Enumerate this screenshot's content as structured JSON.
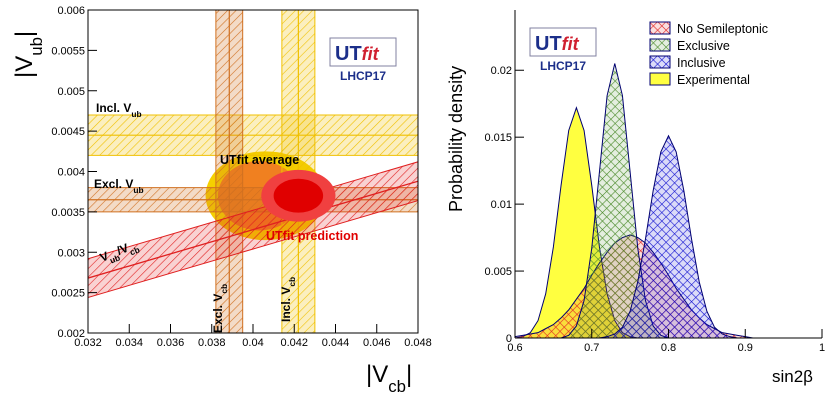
{
  "chart_data": [
    {
      "type": "bands",
      "y_label": [
        "|V",
        "ub",
        "|"
      ],
      "x_label": [
        "|V",
        "cb",
        "|"
      ],
      "xlim": [
        0.032,
        0.048
      ],
      "xticks": [
        0.032,
        0.034,
        0.036,
        0.038,
        0.04,
        0.042,
        0.044,
        0.046,
        0.048
      ],
      "ylim": [
        0.002,
        0.006
      ],
      "yticks": [
        0.002,
        0.0025,
        0.003,
        0.0035,
        0.004,
        0.0045,
        0.005,
        0.0055,
        0.006
      ],
      "logo": {
        "main": "UT",
        "italic": "fit",
        "sub": "LHCP17"
      },
      "bands": [
        {
          "label": [
            "Incl. V",
            "ub"
          ],
          "axis": "y",
          "range": [
            0.0042,
            0.0047
          ],
          "center": 0.00445,
          "color": "#f0c000"
        },
        {
          "label": [
            "Excl. V",
            "ub"
          ],
          "axis": "y",
          "range": [
            0.0035,
            0.0038
          ],
          "center": 0.00365,
          "color": "#d07020"
        },
        {
          "label": [
            "Excl. V",
            "cb"
          ],
          "axis": "x",
          "range": [
            0.0382,
            0.0395
          ],
          "center": 0.03885,
          "color": "#d07020"
        },
        {
          "label": [
            "Incl. V",
            "cb"
          ],
          "axis": "x",
          "range": [
            0.0414,
            0.043
          ],
          "center": 0.0422,
          "color": "#f0c000"
        },
        {
          "label": [
            "V",
            "ub",
            "/V",
            "cb"
          ],
          "axis": "diagonal",
          "x": [
            0.032,
            0.048
          ],
          "center": [
            0.00268,
            0.00388
          ],
          "half_width": 0.00024,
          "color": "#e02020"
        }
      ],
      "ellipses": [
        {
          "label": "UTfit average",
          "cx": 0.0406,
          "cy": 0.0037,
          "rx": 0.0029,
          "ry": 0.00055,
          "color": "#f5d000",
          "inner": {
            "cx": 0.0403,
            "cy": 0.0037,
            "rx": 0.002,
            "ry": 0.00043,
            "color": "#f08020"
          }
        },
        {
          "label": "UTfit prediction",
          "cx": 0.0422,
          "cy": 0.0037,
          "rx": 0.0018,
          "ry": 0.00032,
          "color": "#f04040",
          "inner": {
            "cx": 0.0422,
            "cy": 0.0037,
            "rx": 0.0012,
            "ry": 0.00021,
            "color": "#e00000"
          }
        }
      ]
    },
    {
      "type": "density",
      "y_label": "Probability density",
      "x_label": "sin2β",
      "xlim": [
        0.6,
        1
      ],
      "xticks": [
        0.6,
        0.7,
        0.8,
        0.9,
        1
      ],
      "ylim": [
        0,
        0.0245
      ],
      "yticks": [
        0,
        0.005,
        0.01,
        0.015,
        0.02
      ],
      "logo": {
        "main": "UT",
        "italic": "fit",
        "sub": "LHCP17"
      },
      "x": [
        0.6,
        0.61,
        0.62,
        0.63,
        0.64,
        0.65,
        0.66,
        0.67,
        0.68,
        0.69,
        0.7,
        0.71,
        0.72,
        0.73,
        0.74,
        0.75,
        0.76,
        0.77,
        0.78,
        0.79,
        0.8,
        0.81,
        0.82,
        0.83,
        0.84,
        0.85,
        0.86,
        0.87,
        0.88,
        0.89,
        0.9,
        0.91,
        0.92
      ],
      "draw_order": [
        3,
        0,
        1,
        2
      ],
      "series": [
        {
          "name": "No Semileptonic",
          "color": "#e02020",
          "fill": "crosshatch",
          "values": [
            0.0001,
            0.0002,
            0.0003,
            0.0004,
            0.0007,
            0.001,
            0.0015,
            0.0021,
            0.0029,
            0.0037,
            0.0047,
            0.0056,
            0.0064,
            0.0071,
            0.0075,
            0.0077,
            0.0075,
            0.0071,
            0.0064,
            0.0056,
            0.0047,
            0.0037,
            0.0029,
            0.0021,
            0.0015,
            0.001,
            0.0007,
            0.0004,
            0.0003,
            0.0002,
            0.0001,
            0,
            0
          ]
        },
        {
          "name": "Exclusive",
          "color": "#4a8a2a",
          "fill": "crosshatch",
          "values": [
            0,
            0,
            0,
            0,
            0,
            0,
            0,
            0.0002,
            0.0009,
            0.0028,
            0.0067,
            0.0124,
            0.0181,
            0.0205,
            0.0181,
            0.0124,
            0.0067,
            0.0028,
            0.0009,
            0.0002,
            0,
            0,
            0,
            0,
            0,
            0,
            0,
            0,
            0,
            0,
            0,
            0,
            0
          ]
        },
        {
          "name": "Inclusive",
          "color": "#1010d0",
          "fill": "crosshatch",
          "values": [
            0,
            0,
            0,
            0,
            0,
            0,
            0,
            0,
            0,
            0,
            0,
            0,
            0.0001,
            0.0003,
            0.0008,
            0.002,
            0.0042,
            0.0074,
            0.011,
            0.0139,
            0.0151,
            0.0139,
            0.011,
            0.0074,
            0.0042,
            0.002,
            0.0008,
            0.0003,
            0.0001,
            0,
            0,
            0,
            0
          ]
        },
        {
          "name": "Experimental",
          "color": "#ffff40",
          "fill": "solid",
          "values": [
            0,
            0.0001,
            0.0004,
            0.0013,
            0.0033,
            0.0068,
            0.0114,
            0.0155,
            0.0172,
            0.0155,
            0.0114,
            0.0068,
            0.0033,
            0.0013,
            0.0004,
            0.0001,
            0,
            0,
            0,
            0,
            0,
            0,
            0,
            0,
            0,
            0,
            0,
            0,
            0,
            0,
            0,
            0,
            0
          ]
        }
      ]
    }
  ]
}
